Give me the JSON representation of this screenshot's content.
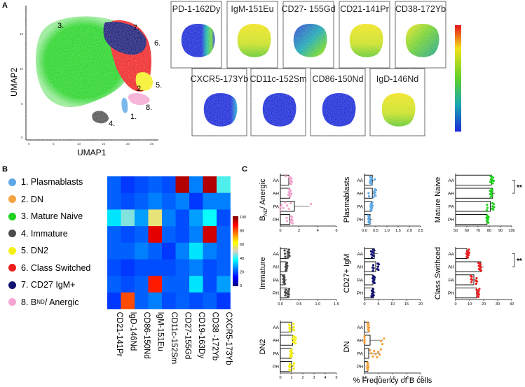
{
  "panels": {
    "a": "A",
    "b": "B",
    "c": "C"
  },
  "umap": {
    "xlabel": "UMAP1",
    "ylabel": "UMAP2",
    "xticks": [
      "0",
      "5",
      "10",
      "15",
      "20",
      "25"
    ],
    "yticks": [
      "0",
      "5",
      "10",
      "15"
    ],
    "cluster_labels": [
      "1.",
      "2.",
      "3.",
      "4.",
      "5.",
      "6.",
      "7.",
      "8."
    ]
  },
  "marker_maps": {
    "row1": [
      "PD-1-162Dy",
      "IgM-151Eu",
      "CD27- 155Gd",
      "CD21-141Pr",
      "CD38-172Yb"
    ],
    "row2": [
      "CXCR5-173Yb",
      "CD11c-152Sm",
      "CD86-150Nd",
      "IgD-146Nd"
    ]
  },
  "legend_items": [
    {
      "label": "1. Plasmablasts",
      "color": "#5fa8e6"
    },
    {
      "label": "2. DN",
      "color": "#f5a240"
    },
    {
      "label": "3. Mature Naive",
      "color": "#1fd21f"
    },
    {
      "label": "4. Immature",
      "color": "#4b4b4b"
    },
    {
      "label": "5. DN2",
      "color": "#f5ef1a"
    },
    {
      "label": "6. Class Switched",
      "color": "#ee1c1c"
    },
    {
      "label": "7. CD27 IgM+",
      "color": "#121370"
    },
    {
      "label": "8. B",
      "color": "#f4a6d0",
      "sub": "ND",
      "suffix": "/ Anergic"
    }
  ],
  "heatmap": {
    "columns": [
      "CD21-141Pr",
      "IgD-146Nd",
      "CD86-150Nd",
      "IgM-151Eu",
      "CD11c-152Sm",
      "CD27-155Gd",
      "CD19-163Dy",
      "CD38 -172Yb",
      "CXCR5-173Yb"
    ],
    "colorbar_ticks": [
      "100",
      "80",
      "60",
      "40",
      "20",
      "0"
    ],
    "values": [
      [
        22,
        18,
        20,
        22,
        20,
        95,
        25,
        95,
        42
      ],
      [
        22,
        20,
        22,
        25,
        22,
        25,
        18,
        25,
        25
      ],
      [
        35,
        45,
        28,
        55,
        25,
        20,
        28,
        38,
        20
      ],
      [
        22,
        20,
        22,
        90,
        22,
        20,
        25,
        92,
        22
      ],
      [
        22,
        22,
        25,
        22,
        18,
        25,
        35,
        25,
        22
      ],
      [
        20,
        18,
        20,
        20,
        20,
        22,
        25,
        20,
        22
      ],
      [
        22,
        20,
        22,
        85,
        22,
        22,
        35,
        20,
        28
      ],
      [
        18,
        80,
        22,
        25,
        20,
        22,
        20,
        22,
        18
      ]
    ]
  },
  "groups": [
    "AA",
    "AH",
    "PA",
    "PH"
  ],
  "xlabel": "% Frequency of B cells",
  "sig": "**",
  "subplots": [
    {
      "ylabel": "B",
      "ysub": "ND",
      "ysuffix": "/ Anergic",
      "color": "#f4a6d0",
      "xticks": [
        "0",
        "2",
        "4",
        "6"
      ],
      "means": [
        0.9,
        1.0,
        1.5,
        1.0
      ],
      "sem": [
        0.3,
        0.3,
        1.6,
        0.3
      ]
    },
    {
      "ylabel": "Plasmablasts",
      "color": "#5fa8e6",
      "xticks": [
        "0.0",
        "0.5",
        "1.0",
        "1.5",
        "2.0",
        "2.5"
      ],
      "means": [
        0.35,
        0.35,
        0.3,
        0.25
      ],
      "sem": [
        0.1,
        0.15,
        0.1,
        0.08
      ]
    },
    {
      "ylabel": "Mature Naive",
      "color": "#1fd21f",
      "xticks": [
        "50",
        "60",
        "70",
        "80",
        "90",
        "100"
      ],
      "means": [
        82,
        83,
        81,
        78
      ],
      "sem": [
        3,
        2,
        3,
        2
      ]
    },
    {
      "ylabel": "Immature",
      "color": "#4b4b4b",
      "xticks": [
        "0.0",
        "0.5",
        "1.0",
        "1.5"
      ],
      "means": [
        0.18,
        0.15,
        0.12,
        0.18
      ],
      "sem": [
        0.06,
        0.05,
        0.05,
        0.05
      ]
    },
    {
      "ylabel": "CD27+ IgM",
      "color": "#121370",
      "xticks": [
        "0",
        "5",
        "10",
        "15",
        "20"
      ],
      "means": [
        3.5,
        4.0,
        3.0,
        3.2
      ],
      "sem": [
        1.2,
        1.0,
        0.8,
        0.8
      ]
    },
    {
      "ylabel": "Class Swithced",
      "color": "#ee1c1c",
      "xticks": [
        "0",
        "10",
        "20",
        "30",
        "40"
      ],
      "means": [
        8,
        18,
        13,
        15
      ],
      "sem": [
        2,
        2,
        2,
        2
      ]
    },
    {
      "ylabel": "DN2",
      "color": "#f5ef1a",
      "xticks": [
        "0",
        "1",
        "2",
        "3",
        "4",
        "5"
      ],
      "means": [
        1.0,
        1.1,
        1.0,
        1.0
      ],
      "sem": [
        0.2,
        0.3,
        0.2,
        0.2
      ]
    },
    {
      "ylabel": "DN",
      "color": "#f5a240",
      "xticks": [
        "0.0",
        "0.5",
        "1.0",
        "1.5",
        "2.0"
      ],
      "means": [
        0.15,
        0.2,
        0.15,
        0.12
      ],
      "sem": [
        0.05,
        0.45,
        0.4,
        0.05
      ]
    }
  ]
}
